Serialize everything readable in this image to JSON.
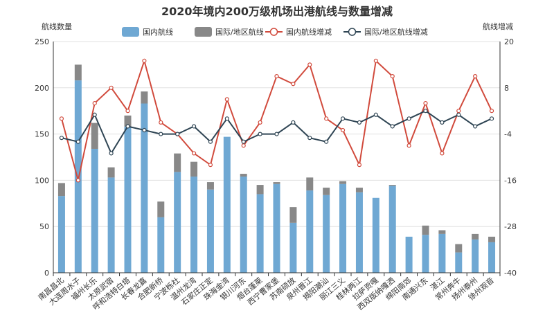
{
  "chart_data": {
    "type": "bar",
    "title": "2020年境内200万级机场出港航线与数量增减",
    "ylabel_left": "航线数量",
    "ylabel_right": "航线增减",
    "ylim_left": [
      0,
      250
    ],
    "yticks_left": [
      0,
      50,
      100,
      150,
      200,
      250
    ],
    "ylim_right": [
      -40,
      20
    ],
    "yticks_right": [
      -40,
      -28,
      -16,
      -4,
      8,
      20
    ],
    "grid": true,
    "legend_position": "top",
    "categories": [
      "南昌昌北",
      "大连周水子",
      "福州长乐",
      "太原武宿",
      "呼和浩特白塔",
      "长春龙嘉",
      "合肥新桥",
      "宁波栎社",
      "温州龙湾",
      "石家庄正定",
      "珠海金湾",
      "银川河东",
      "烟台蓬莱",
      "西宁曹家堡",
      "苏南硕放",
      "泉州晋江",
      "揭阳潮汕",
      "丽江三义",
      "桂林两江",
      "拉萨贡嘎",
      "西双版纳嘎洒",
      "绵阳南郊",
      "南通兴东",
      "湛江",
      "常州奔牛",
      "扬州泰州",
      "徐州观音"
    ],
    "series": [
      {
        "name": "国内航线",
        "type": "bar",
        "axis": "left",
        "color": "#6fa8d3",
        "values": [
          83,
          208,
          134,
          103,
          158,
          183,
          60,
          109,
          104,
          90,
          147,
          104,
          85,
          96,
          54,
          89,
          84,
          96,
          87,
          81,
          94,
          39,
          41,
          42,
          22,
          36,
          33
        ]
      },
      {
        "name": "国际/地区航线",
        "type": "bar",
        "axis": "left",
        "color": "#888888",
        "values": [
          14,
          17,
          28,
          11,
          12,
          13,
          17,
          20,
          16,
          8,
          0,
          3,
          10,
          2,
          17,
          14,
          8,
          3,
          5,
          0,
          1,
          0,
          10,
          4,
          9,
          6,
          6
        ]
      },
      {
        "name": "国内航线增减",
        "type": "line",
        "axis": "right",
        "color": "#d14a3c",
        "values": [
          0,
          -16,
          4,
          8,
          2,
          15,
          -1,
          -4,
          -9,
          -12,
          5,
          -7,
          -1,
          11,
          9,
          14,
          0,
          -3,
          -12,
          15,
          11,
          -7,
          4,
          -9,
          2,
          11,
          2
        ]
      },
      {
        "name": "国际/地区航线增减",
        "type": "line",
        "axis": "right",
        "color": "#2f4554",
        "values": [
          -5,
          -6,
          1,
          -9,
          -2,
          -3,
          -4,
          -4,
          -2,
          -6,
          0,
          -6,
          -4,
          -4,
          -1,
          -5,
          -6,
          0,
          -1,
          1,
          -2,
          0,
          2,
          -1,
          1,
          -2,
          0
        ]
      }
    ]
  }
}
